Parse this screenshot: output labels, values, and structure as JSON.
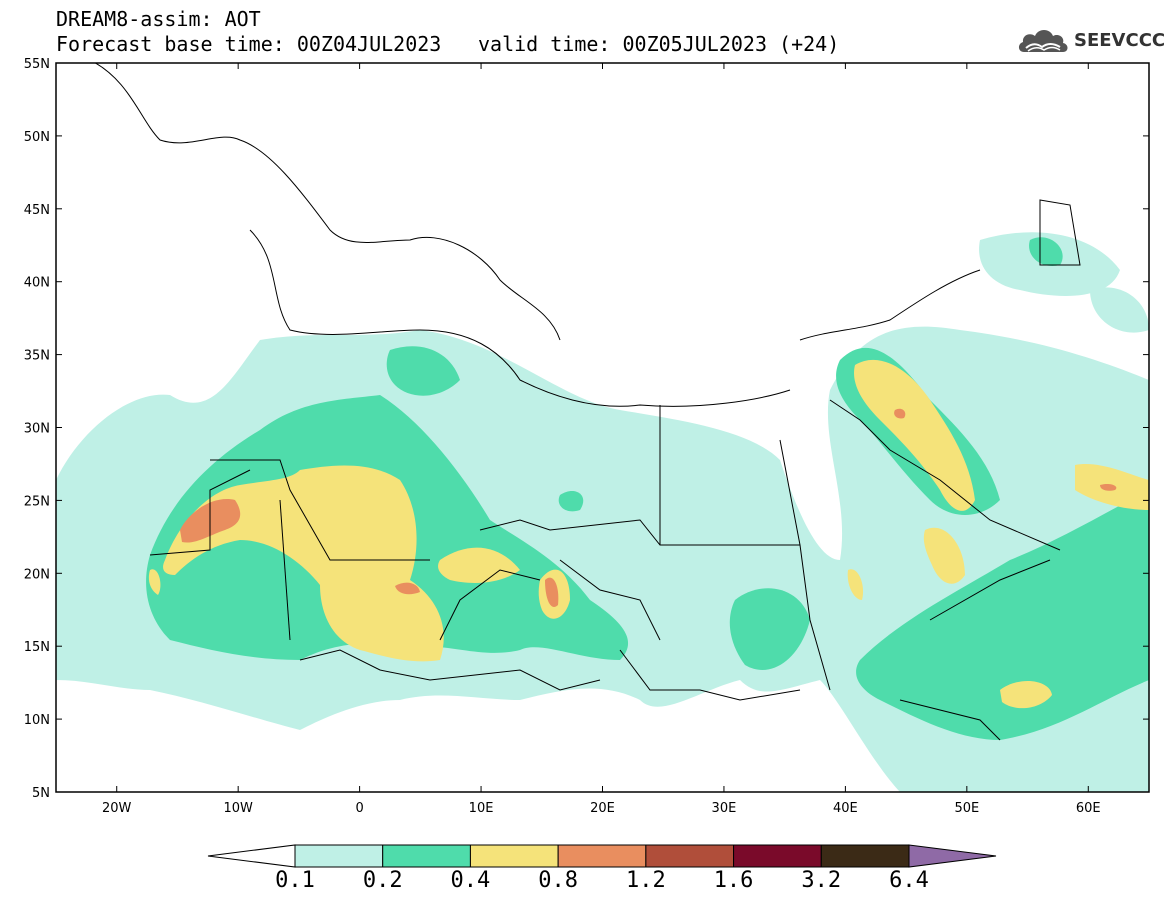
{
  "header": {
    "line1": "DREAM8-assim: AOT",
    "line2": "Forecast base time: 00Z04JUL2023",
    "valid": "valid time: 00Z05JUL2023 (+24)"
  },
  "logo": {
    "text": "SEEVCCC",
    "icon": "cloud-logo-icon",
    "color": "#555555"
  },
  "map": {
    "lon_range": [
      -25,
      65
    ],
    "lat_range": [
      5,
      55
    ],
    "lon_ticks": [
      {
        "v": -20,
        "label": "20W"
      },
      {
        "v": -10,
        "label": "10W"
      },
      {
        "v": 0,
        "label": "0"
      },
      {
        "v": 10,
        "label": "10E"
      },
      {
        "v": 20,
        "label": "20E"
      },
      {
        "v": 30,
        "label": "30E"
      },
      {
        "v": 40,
        "label": "40E"
      },
      {
        "v": 50,
        "label": "50E"
      },
      {
        "v": 60,
        "label": "60E"
      }
    ],
    "lat_ticks": [
      {
        "v": 55,
        "label": "55N"
      },
      {
        "v": 50,
        "label": "50N"
      },
      {
        "v": 45,
        "label": "45N"
      },
      {
        "v": 40,
        "label": "40N"
      },
      {
        "v": 35,
        "label": "35N"
      },
      {
        "v": 30,
        "label": "30N"
      },
      {
        "v": 25,
        "label": "25N"
      },
      {
        "v": 20,
        "label": "20N"
      },
      {
        "v": 15,
        "label": "15N"
      },
      {
        "v": 10,
        "label": "10N"
      },
      {
        "v": 5,
        "label": "5N"
      }
    ]
  },
  "colorbar": {
    "colors": [
      "#ffffff",
      "#bff0e6",
      "#4fdcab",
      "#f5e37a",
      "#e98e5f",
      "#b04e3a",
      "#7a0a2a",
      "#3b2a16",
      "#8f6aa6"
    ],
    "labels": [
      "0.1",
      "0.2",
      "0.4",
      "0.8",
      "1.2",
      "1.6",
      "3.2",
      "6.4"
    ]
  }
}
